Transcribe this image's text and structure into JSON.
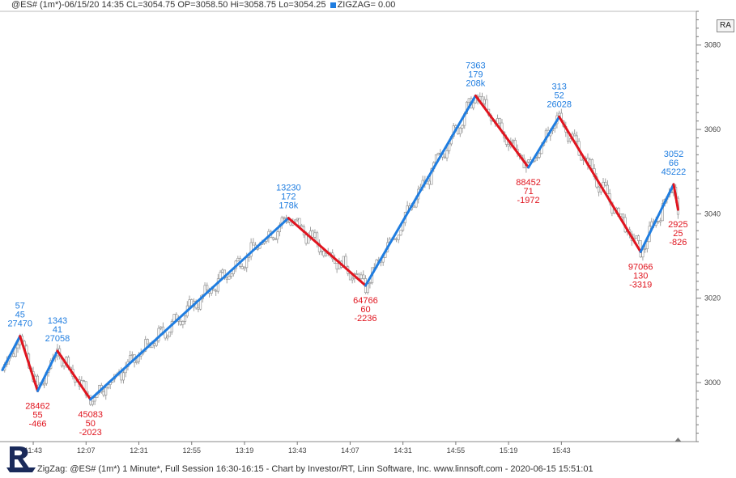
{
  "header": {
    "title": "@ES# (1m*)-06/15/20 14:35 CL=3054.75 OP=3058.50 Hi=3058.75 Lo=3054.25",
    "indicator": "ZIGZAG= 0.00"
  },
  "toolbar": {
    "ra_label": "RA"
  },
  "footer": {
    "text": "ZigZag: @ES# (1m*) 1 Minute*, Full Session 16:30-16:15 - Chart by Investor/RT, Linn Software, Inc. www.linnsoft.com - 2020-06-15 15:51:01"
  },
  "colors": {
    "up": "#1f7de0",
    "down": "#e0141e",
    "candle": "#8a8a8a"
  },
  "chart_data": {
    "type": "line",
    "ylim": [
      2986,
      3088
    ],
    "y_ticks": [
      3000,
      3020,
      3040,
      3060,
      3080
    ],
    "x_ticks": [
      "11:43",
      "12:07",
      "12:31",
      "12:55",
      "13:19",
      "13:43",
      "14:07",
      "14:31",
      "14:55",
      "15:19",
      "15:43"
    ],
    "series": [
      {
        "points": [
          {
            "t": 0,
            "y": 3003
          },
          {
            "t": 8,
            "y": 3011
          },
          {
            "t": 16,
            "y": 2998
          },
          {
            "t": 25,
            "y": 3007.5
          },
          {
            "t": 40,
            "y": 2996
          },
          {
            "t": 130,
            "y": 3039
          },
          {
            "t": 165,
            "y": 3023
          },
          {
            "t": 215,
            "y": 3068
          },
          {
            "t": 239,
            "y": 3051
          },
          {
            "t": 253,
            "y": 3063
          },
          {
            "t": 290,
            "y": 3031
          },
          {
            "t": 305,
            "y": 3047
          },
          {
            "t": 307,
            "y": 3041
          }
        ]
      }
    ],
    "annotations": [
      {
        "pivot": 1,
        "pos": "above",
        "lines": [
          "57",
          "45",
          "27470"
        ]
      },
      {
        "pivot": 2,
        "pos": "below",
        "lines": [
          "28462",
          "55",
          "-466"
        ]
      },
      {
        "pivot": 3,
        "pos": "above",
        "lines": [
          "1343",
          "41",
          "27058"
        ]
      },
      {
        "pivot": 4,
        "pos": "below",
        "lines": [
          "45083",
          "50",
          "-2023"
        ]
      },
      {
        "pivot": 5,
        "pos": "above",
        "lines": [
          "13230",
          "172",
          "178k"
        ]
      },
      {
        "pivot": 6,
        "pos": "below",
        "lines": [
          "64766",
          "60",
          "-2236"
        ]
      },
      {
        "pivot": 7,
        "pos": "above",
        "lines": [
          "7363",
          "179",
          "208k"
        ]
      },
      {
        "pivot": 8,
        "pos": "below",
        "lines": [
          "88452",
          "71",
          "-1972"
        ]
      },
      {
        "pivot": 9,
        "pos": "above",
        "lines": [
          "313",
          "52",
          "26028"
        ]
      },
      {
        "pivot": 10,
        "pos": "below",
        "lines": [
          "97066",
          "130",
          "-3319"
        ]
      },
      {
        "pivot": 11,
        "pos": "above",
        "lines": [
          "3052",
          "66",
          "45222"
        ]
      },
      {
        "pivot": 12,
        "pos": "below",
        "lines": [
          "2925",
          "25",
          "-826"
        ]
      }
    ]
  }
}
